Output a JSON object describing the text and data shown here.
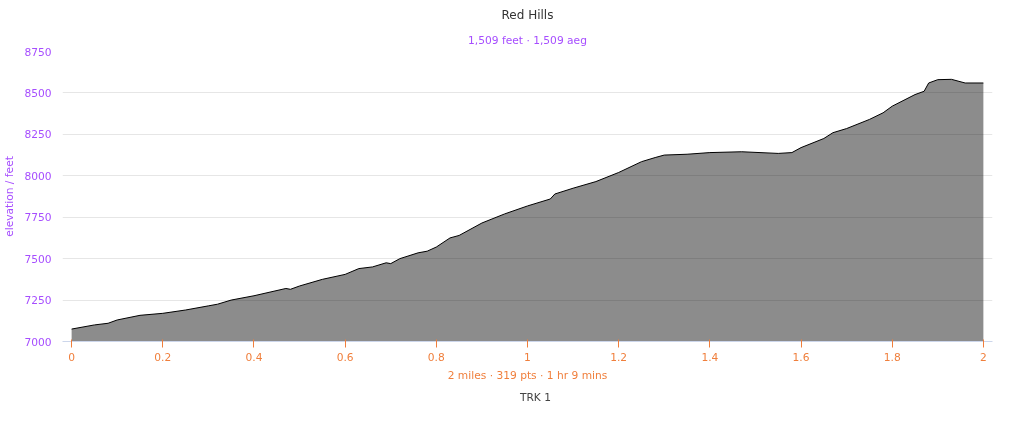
{
  "chart_data": {
    "type": "area",
    "title": "Red Hills",
    "subtitle": "1,509 feet · 1,509 aeg",
    "xlabel": "2 miles · 319 pts · 1 hr 9 mins",
    "ylabel": "elevation / feet",
    "x": [
      0,
      0.05,
      0.08,
      0.1,
      0.15,
      0.2,
      0.25,
      0.3,
      0.32,
      0.35,
      0.4,
      0.47,
      0.48,
      0.5,
      0.55,
      0.6,
      0.63,
      0.66,
      0.69,
      0.7,
      0.72,
      0.76,
      0.78,
      0.8,
      0.83,
      0.85,
      0.9,
      0.95,
      1.0,
      1.05,
      1.06,
      1.1,
      1.15,
      1.2,
      1.25,
      1.28,
      1.3,
      1.35,
      1.4,
      1.47,
      1.55,
      1.58,
      1.6,
      1.65,
      1.67,
      1.7,
      1.75,
      1.78,
      1.8,
      1.85,
      1.87,
      1.88,
      1.9,
      1.93,
      1.96,
      2.0
    ],
    "series": [
      {
        "name": "TRK 1",
        "color": "#000000",
        "values": [
          7075,
          7100,
          7110,
          7130,
          7158,
          7170,
          7190,
          7215,
          7225,
          7250,
          7276,
          7320,
          7315,
          7335,
          7375,
          7405,
          7440,
          7450,
          7475,
          7470,
          7500,
          7535,
          7545,
          7570,
          7625,
          7640,
          7715,
          7770,
          7818,
          7860,
          7890,
          7925,
          7965,
          8020,
          8085,
          8110,
          8125,
          8130,
          8140,
          8145,
          8135,
          8140,
          8170,
          8225,
          8260,
          8285,
          8340,
          8380,
          8420,
          8490,
          8510,
          8560,
          8580,
          8582,
          8560,
          8560
        ]
      }
    ],
    "xlim": [
      -0.02,
      2.02
    ],
    "ylim": [
      7000,
      8750
    ],
    "xticks": [
      0,
      0.2,
      0.4,
      0.6,
      0.8,
      1,
      1.2,
      1.4,
      1.6,
      1.8,
      2
    ],
    "yticks": [
      7000,
      7250,
      7500,
      7750,
      8000,
      8250,
      8500,
      8750
    ],
    "grid": "y",
    "legend": "bottom",
    "marker": "none",
    "line_style": "solid"
  }
}
